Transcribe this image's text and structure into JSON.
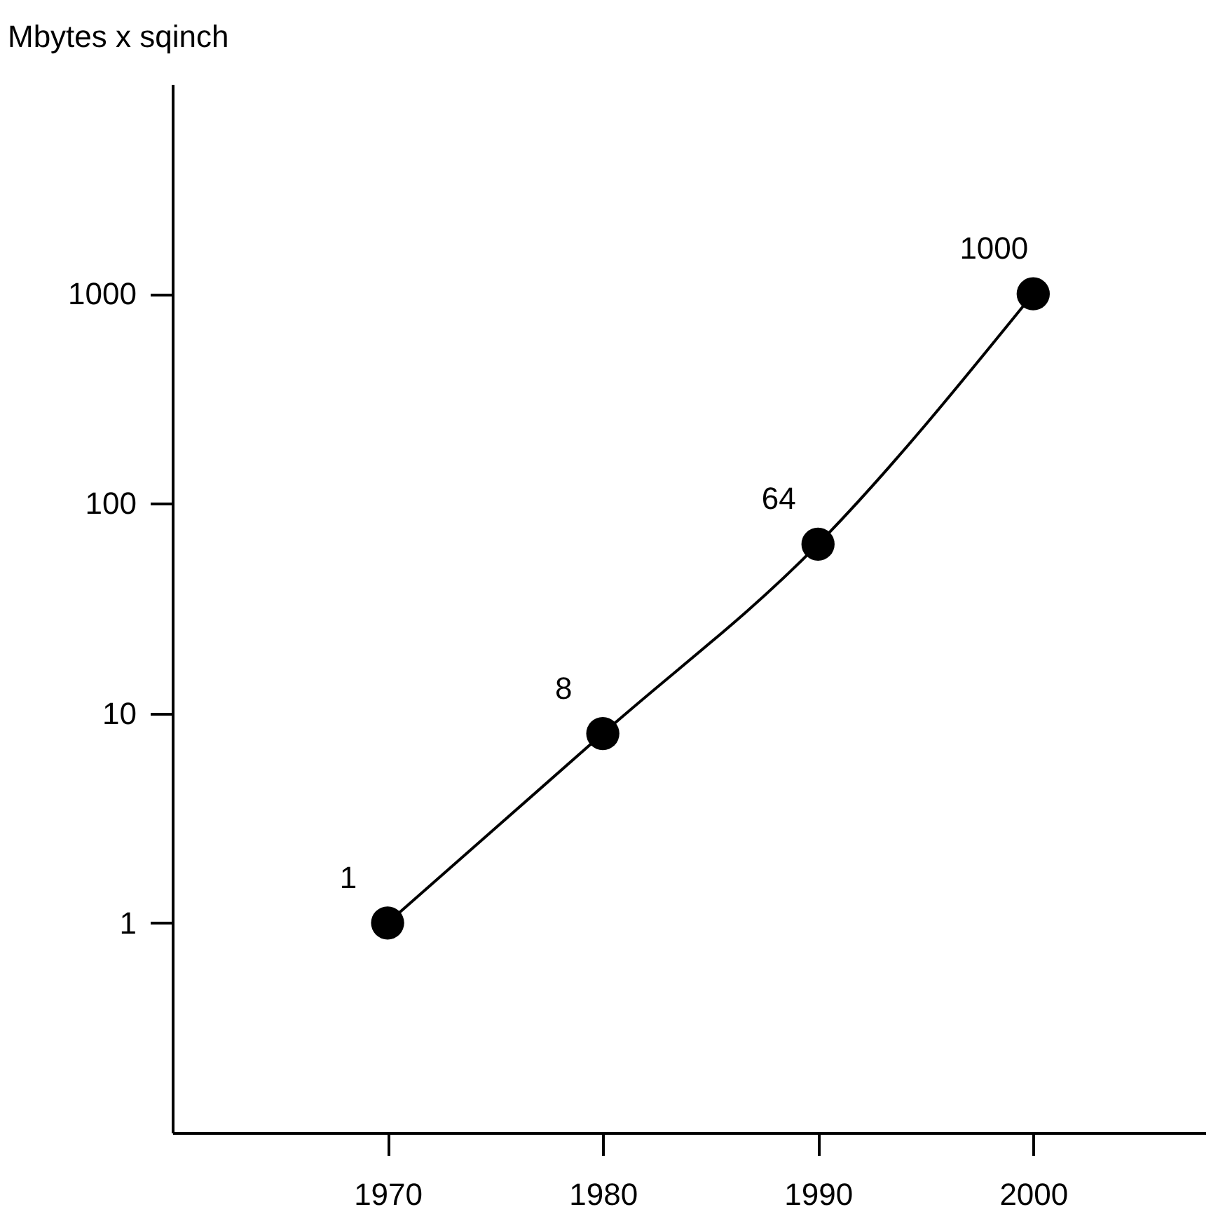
{
  "chart_data": {
    "type": "line",
    "x": [
      1970,
      1980,
      1990,
      2000
    ],
    "series": [
      {
        "color": "#000000",
        "values": [
          1,
          8,
          64,
          1000
        ]
      }
    ],
    "ylabel": "Mbytes x sqinch",
    "xlim": [
      1960,
      2008
    ],
    "xticks": [
      1970,
      1980,
      1990,
      2000
    ],
    "ylim": [
      0.1,
      10000
    ],
    "yticks": [
      1,
      10,
      100,
      1000
    ],
    "log": "y",
    "grid": false,
    "marker": "circle",
    "line_style": "solid",
    "data_labels": true
  }
}
